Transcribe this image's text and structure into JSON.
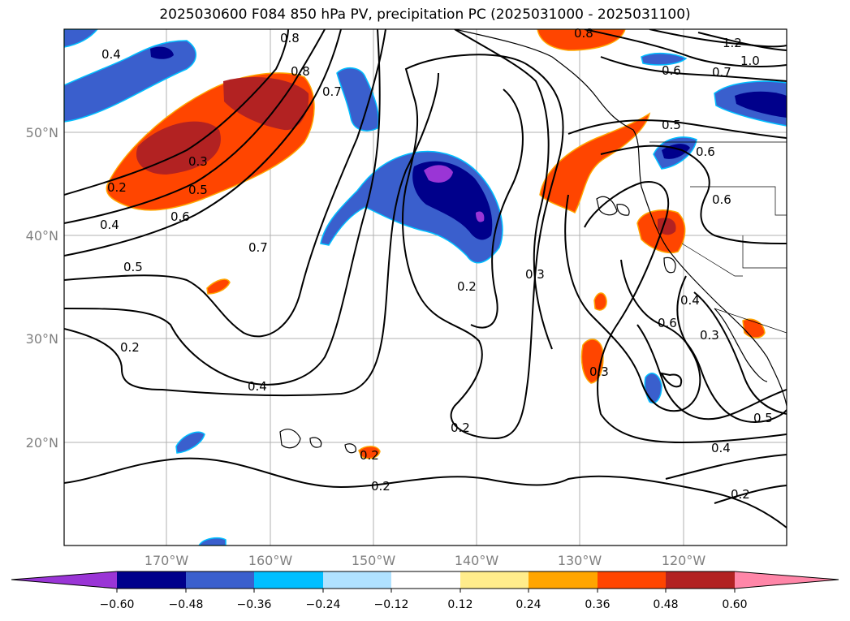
{
  "title": "2025030600 F084 850 hPa PV, precipitation PC (2025031000 - 2025031100)",
  "lat_labels": [
    "50°N",
    "40°N",
    "30°N",
    "20°N"
  ],
  "lon_labels": [
    "170°W",
    "160°W",
    "150°W",
    "140°W",
    "130°W",
    "120°W"
  ],
  "contour_labels": [
    "0.4",
    "0.8",
    "0.7",
    "0.8",
    "0.8",
    "1.2",
    "1.0",
    "0.6",
    "0.7",
    "0.5",
    "0.6",
    "0.6",
    "0.2",
    "0.3",
    "0.5",
    "0.4",
    "0.6",
    "0.5",
    "0.7",
    "0.2",
    "0.3",
    "0.2",
    "0.4",
    "0.2",
    "0.2",
    "0.2",
    "0.3",
    "0.6",
    "0.4",
    "0.3",
    "0.5",
    "0.4",
    "0.2"
  ],
  "colorbar": {
    "ticks": [
      "−0.60",
      "−0.48",
      "−0.36",
      "−0.24",
      "−0.12",
      "0.12",
      "0.24",
      "0.36",
      "0.48",
      "0.60"
    ],
    "colors": [
      "#9a35d6",
      "#00008b",
      "#3a5fcd",
      "#00bfff",
      "#b0e2ff",
      "#ffffff",
      "#ffec8b",
      "#ffa500",
      "#ff4500",
      "#b22222",
      "#ff86a8"
    ]
  }
}
